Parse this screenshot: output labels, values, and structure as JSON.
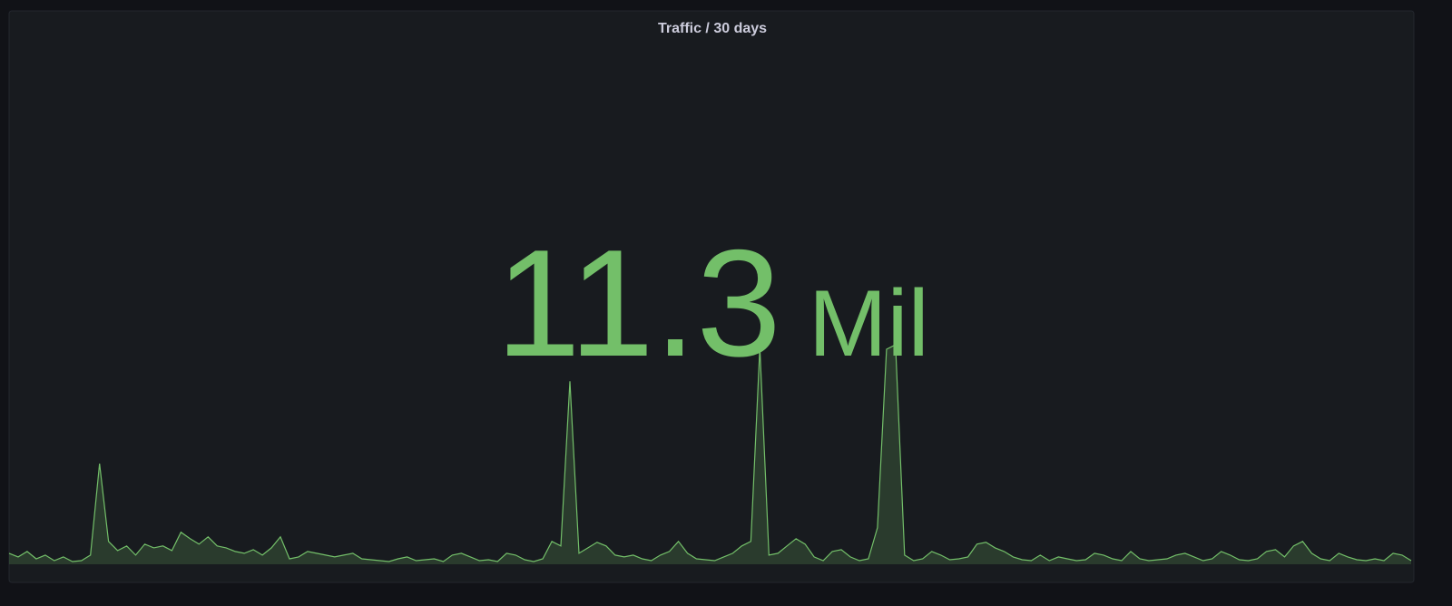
{
  "panel": {
    "title": "Traffic / 30 days",
    "value": 11.3,
    "unit": "Mil"
  },
  "chart_data": {
    "type": "line",
    "color": "#73bf69",
    "values": [
      12,
      8,
      14,
      6,
      10,
      4,
      8,
      3,
      4,
      10,
      110,
      25,
      15,
      20,
      10,
      22,
      18,
      20,
      15,
      35,
      28,
      22,
      30,
      20,
      18,
      14,
      12,
      16,
      10,
      18,
      30,
      6,
      8,
      14,
      12,
      10,
      8,
      10,
      12,
      6,
      5,
      4,
      3,
      6,
      8,
      4,
      5,
      6,
      3,
      10,
      12,
      8,
      4,
      5,
      3,
      12,
      10,
      5,
      3,
      6,
      25,
      20,
      200,
      12,
      18,
      24,
      20,
      10,
      8,
      10,
      6,
      4,
      10,
      14,
      25,
      12,
      6,
      5,
      4,
      8,
      12,
      20,
      25,
      237,
      10,
      12,
      20,
      28,
      22,
      8,
      4,
      14,
      16,
      8,
      4,
      6,
      40,
      235,
      240,
      10,
      4,
      6,
      14,
      10,
      5,
      6,
      8,
      22,
      24,
      18,
      14,
      8,
      5,
      4,
      10,
      4,
      8,
      6,
      4,
      5,
      12,
      10,
      6,
      4,
      14,
      6,
      4,
      5,
      6,
      10,
      12,
      8,
      4,
      6,
      14,
      10,
      5,
      4,
      6,
      14,
      16,
      8,
      20,
      25,
      12,
      6,
      4,
      12,
      8,
      5,
      4,
      6,
      4,
      12,
      10,
      4
    ]
  }
}
